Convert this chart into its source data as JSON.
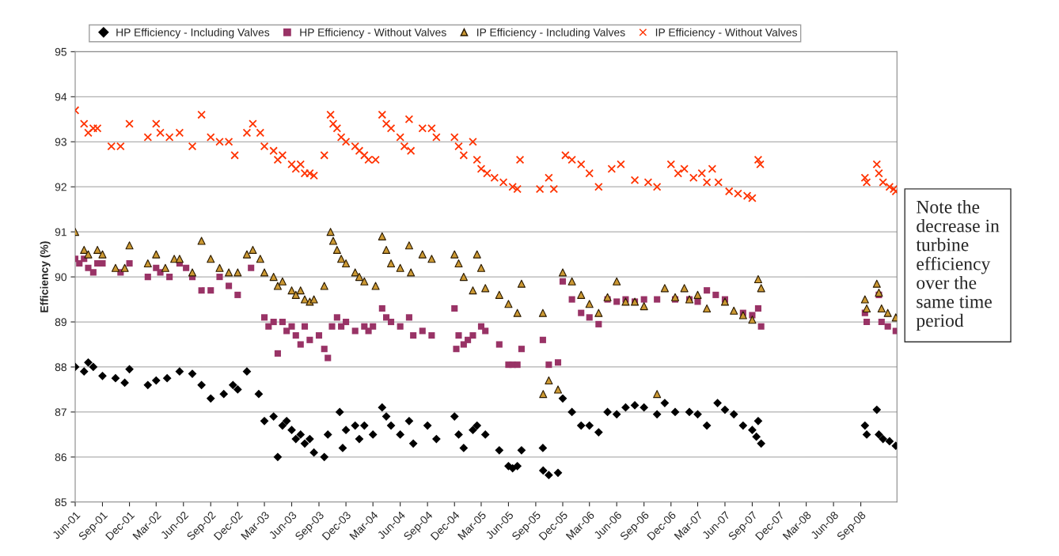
{
  "chart_data": {
    "type": "scatter",
    "ylabel": "Efficiency (%)",
    "annotations": [
      "Note the\ndecrease in\nturbine\nefficiency\nover the\nsame time\nperiod"
    ],
    "xlim": [
      "2001-06-01",
      "2009-01-01"
    ],
    "ylim": [
      85,
      95
    ],
    "yticks": [
      85,
      86,
      87,
      88,
      89,
      90,
      91,
      92,
      93,
      94,
      95
    ],
    "xticks": [
      {
        "value": "2001-06-01",
        "label": "Jun-01"
      },
      {
        "value": "2001-09-01",
        "label": "Sep-01"
      },
      {
        "value": "2001-12-01",
        "label": "Dec-01"
      },
      {
        "value": "2002-03-01",
        "label": "Mar-02"
      },
      {
        "value": "2002-06-01",
        "label": "Jun-02"
      },
      {
        "value": "2002-09-01",
        "label": "Sep-02"
      },
      {
        "value": "2002-12-01",
        "label": "Dec-02"
      },
      {
        "value": "2003-03-01",
        "label": "Mar-03"
      },
      {
        "value": "2003-06-01",
        "label": "Jun-03"
      },
      {
        "value": "2003-09-01",
        "label": "Sep-03"
      },
      {
        "value": "2003-12-01",
        "label": "Dec-03"
      },
      {
        "value": "2004-03-01",
        "label": "Mar-04"
      },
      {
        "value": "2004-06-01",
        "label": "Jun-04"
      },
      {
        "value": "2004-09-01",
        "label": "Sep-04"
      },
      {
        "value": "2004-12-01",
        "label": "Dec-04"
      },
      {
        "value": "2005-03-01",
        "label": "Mar-05"
      },
      {
        "value": "2005-06-01",
        "label": "Jun-05"
      },
      {
        "value": "2005-09-01",
        "label": "Sep-05"
      },
      {
        "value": "2005-12-01",
        "label": "Dec-05"
      },
      {
        "value": "2006-03-01",
        "label": "Mar-06"
      },
      {
        "value": "2006-06-01",
        "label": "Jun-06"
      },
      {
        "value": "2006-09-01",
        "label": "Sep-06"
      },
      {
        "value": "2006-12-01",
        "label": "Dec-06"
      },
      {
        "value": "2007-03-01",
        "label": "Mar-07"
      },
      {
        "value": "2007-06-01",
        "label": "Jun-07"
      },
      {
        "value": "2007-09-01",
        "label": "Sep-07"
      },
      {
        "value": "2007-12-01",
        "label": "Dec-07"
      },
      {
        "value": "2008-03-01",
        "label": "Mar-08"
      },
      {
        "value": "2008-06-01",
        "label": "Jun-08"
      },
      {
        "value": "2008-09-01",
        "label": "Sep-08"
      }
    ],
    "grid": "y",
    "legend": "top",
    "series": [
      {
        "name": "HP Efficiency - Including Valves",
        "color": "#000000",
        "marker": "diamond",
        "x": [
          "2001-06-01",
          "2001-07-01",
          "2001-07-15",
          "2001-08-01",
          "2001-09-01",
          "2001-10-15",
          "2001-11-15",
          "2001-12-01",
          "2002-02-01",
          "2002-03-01",
          "2002-04-07",
          "2002-05-19",
          "2002-07-01",
          "2002-08-01",
          "2002-09-01",
          "2002-10-15",
          "2002-11-15",
          "2002-12-01",
          "2003-01-01",
          "2003-02-10",
          "2003-03-01",
          "2003-04-01",
          "2003-04-15",
          "2003-05-01",
          "2003-05-15",
          "2003-06-01",
          "2003-06-15",
          "2003-07-01",
          "2003-07-15",
          "2003-08-01",
          "2003-08-15",
          "2003-09-19",
          "2003-10-01",
          "2003-11-10",
          "2003-11-20",
          "2003-12-01",
          "2004-01-01",
          "2004-01-15",
          "2004-02-01",
          "2004-03-01",
          "2004-04-01",
          "2004-04-15",
          "2004-05-01",
          "2004-06-01",
          "2004-07-01",
          "2004-07-15",
          "2004-09-01",
          "2004-10-01",
          "2004-12-01",
          "2004-12-15",
          "2005-01-01",
          "2005-02-01",
          "2005-02-15",
          "2005-03-15",
          "2005-05-01",
          "2005-06-01",
          "2005-06-15",
          "2005-07-01",
          "2005-07-15",
          "2005-09-25",
          "2005-09-26",
          "2005-10-15",
          "2005-11-15",
          "2005-12-01",
          "2006-01-01",
          "2006-02-01",
          "2006-03-01",
          "2006-04-01",
          "2006-05-01",
          "2006-06-01",
          "2006-07-01",
          "2006-08-01",
          "2006-09-01",
          "2006-10-15",
          "2006-11-10",
          "2006-12-15",
          "2007-02-01",
          "2007-03-01",
          "2007-04-01",
          "2007-05-07",
          "2007-06-01",
          "2007-07-01",
          "2007-08-01",
          "2007-09-01",
          "2007-09-15",
          "2007-09-21",
          "2007-10-01",
          "2008-09-15",
          "2008-09-21",
          "2008-10-25",
          "2008-11-01",
          "2008-11-15",
          "2008-12-07",
          "2008-12-28"
        ],
        "values": [
          88.0,
          87.9,
          88.1,
          88.0,
          87.8,
          87.75,
          87.65,
          87.95,
          87.6,
          87.7,
          87.75,
          87.9,
          87.85,
          87.6,
          87.3,
          87.4,
          87.6,
          87.5,
          87.9,
          87.4,
          86.8,
          86.9,
          86.0,
          86.7,
          86.8,
          86.6,
          86.4,
          86.5,
          86.3,
          86.4,
          86.1,
          86.0,
          86.5,
          87.0,
          86.2,
          86.6,
          86.7,
          86.4,
          86.7,
          86.5,
          87.1,
          86.9,
          86.7,
          86.5,
          86.8,
          86.3,
          86.7,
          86.4,
          86.9,
          86.5,
          86.2,
          86.6,
          86.7,
          86.5,
          86.15,
          85.8,
          85.75,
          85.8,
          86.15,
          86.2,
          85.7,
          85.6,
          85.65,
          87.3,
          87.0,
          86.7,
          86.7,
          86.55,
          87.0,
          86.95,
          87.1,
          87.15,
          87.1,
          86.95,
          87.2,
          87.0,
          87.0,
          86.95,
          86.7,
          87.2,
          87.05,
          86.95,
          86.7,
          86.6,
          86.45,
          86.8,
          86.3,
          86.7,
          86.5,
          87.05,
          86.5,
          86.4,
          86.35,
          86.25
        ]
      },
      {
        "name": "HP Efficiency - Without Valves",
        "color": "#993366",
        "marker": "square",
        "x": [
          "2001-06-01",
          "2001-06-15",
          "2001-07-01",
          "2001-07-15",
          "2001-08-01",
          "2001-08-15",
          "2001-09-01",
          "2001-11-01",
          "2001-12-01",
          "2002-02-01",
          "2002-03-01",
          "2002-03-15",
          "2002-04-15",
          "2002-05-19",
          "2002-06-10",
          "2002-07-01",
          "2002-08-01",
          "2002-09-01",
          "2002-10-01",
          "2002-11-01",
          "2002-12-01",
          "2003-01-15",
          "2003-03-01",
          "2003-03-15",
          "2003-04-01",
          "2003-04-15",
          "2003-05-01",
          "2003-05-15",
          "2003-06-01",
          "2003-06-15",
          "2003-07-01",
          "2003-07-15",
          "2003-08-01",
          "2003-09-01",
          "2003-09-19",
          "2003-10-01",
          "2003-10-15",
          "2003-11-01",
          "2003-11-15",
          "2003-12-01",
          "2004-01-01",
          "2004-02-01",
          "2004-02-15",
          "2004-03-01",
          "2004-04-01",
          "2004-04-15",
          "2004-05-01",
          "2004-06-01",
          "2004-07-01",
          "2004-07-15",
          "2004-08-15",
          "2004-09-15",
          "2004-12-01",
          "2004-12-07",
          "2004-12-15",
          "2005-01-01",
          "2005-01-15",
          "2005-02-01",
          "2005-03-01",
          "2005-03-15",
          "2005-05-01",
          "2005-06-01",
          "2005-06-15",
          "2005-07-01",
          "2005-07-15",
          "2005-09-25",
          "2005-10-15",
          "2005-11-15",
          "2005-12-01",
          "2006-01-01",
          "2006-02-01",
          "2006-03-01",
          "2006-04-01",
          "2006-05-01",
          "2006-06-01",
          "2006-07-01",
          "2006-08-01",
          "2006-09-01",
          "2006-10-15",
          "2006-12-15",
          "2007-02-01",
          "2007-03-01",
          "2007-04-01",
          "2007-05-01",
          "2007-06-01",
          "2007-08-01",
          "2007-09-01",
          "2007-09-21",
          "2007-10-01",
          "2008-09-15",
          "2008-09-21",
          "2008-11-01",
          "2008-11-10",
          "2008-12-01",
          "2008-12-28"
        ],
        "values": [
          90.4,
          90.3,
          90.4,
          90.2,
          90.1,
          90.3,
          90.3,
          90.1,
          90.3,
          90.0,
          90.2,
          90.1,
          90.0,
          90.3,
          90.2,
          90.0,
          89.7,
          89.7,
          90.0,
          89.8,
          89.6,
          90.2,
          89.1,
          88.9,
          89.0,
          88.3,
          89.0,
          88.8,
          88.9,
          88.7,
          88.5,
          88.9,
          88.6,
          88.7,
          88.4,
          88.2,
          88.9,
          89.1,
          88.9,
          89.0,
          88.8,
          88.9,
          88.8,
          88.9,
          89.3,
          89.1,
          89.0,
          88.9,
          89.1,
          88.7,
          88.8,
          88.7,
          89.3,
          88.4,
          88.7,
          88.5,
          88.6,
          88.7,
          88.9,
          88.8,
          88.5,
          88.05,
          88.05,
          88.05,
          88.4,
          88.6,
          88.05,
          88.1,
          89.9,
          89.5,
          89.2,
          89.1,
          88.95,
          89.5,
          89.45,
          89.5,
          89.45,
          89.5,
          89.5,
          89.5,
          89.5,
          89.45,
          89.7,
          89.6,
          89.5,
          89.2,
          89.15,
          89.3,
          88.9,
          89.2,
          89.0,
          89.6,
          89.0,
          88.9,
          88.8
        ]
      },
      {
        "name": "IP Efficiency - Including Valves",
        "color": "#cc9933",
        "marker": "triangle",
        "x": [
          "2001-06-01",
          "2001-07-01",
          "2001-07-15",
          "2001-08-15",
          "2001-09-01",
          "2001-10-15",
          "2001-11-15",
          "2001-12-01",
          "2002-02-01",
          "2002-03-01",
          "2002-04-01",
          "2002-05-01",
          "2002-05-19",
          "2002-07-01",
          "2002-08-01",
          "2002-09-01",
          "2002-10-01",
          "2002-11-01",
          "2002-12-01",
          "2003-01-01",
          "2003-01-21",
          "2003-02-15",
          "2003-03-01",
          "2003-04-01",
          "2003-04-15",
          "2003-05-01",
          "2003-06-01",
          "2003-06-15",
          "2003-07-01",
          "2003-07-15",
          "2003-08-01",
          "2003-08-15",
          "2003-09-19",
          "2003-10-10",
          "2003-10-19",
          "2003-11-01",
          "2003-11-15",
          "2003-12-01",
          "2004-01-01",
          "2004-01-15",
          "2004-02-01",
          "2004-03-10",
          "2004-04-01",
          "2004-04-15",
          "2004-05-01",
          "2004-06-01",
          "2004-07-01",
          "2004-07-07",
          "2004-08-15",
          "2004-09-15",
          "2004-12-01",
          "2004-12-15",
          "2005-01-01",
          "2005-02-01",
          "2005-02-15",
          "2005-03-01",
          "2005-03-15",
          "2005-05-01",
          "2005-06-01",
          "2005-07-01",
          "2005-07-15",
          "2005-09-25",
          "2005-09-26",
          "2005-10-15",
          "2005-11-15",
          "2005-12-01",
          "2006-01-01",
          "2006-02-01",
          "2006-03-01",
          "2006-04-01",
          "2006-05-01",
          "2006-06-01",
          "2006-07-01",
          "2006-08-01",
          "2006-09-01",
          "2006-10-15",
          "2006-11-10",
          "2006-12-15",
          "2007-01-15",
          "2007-02-01",
          "2007-03-01",
          "2007-04-01",
          "2007-06-01",
          "2007-07-01",
          "2007-08-01",
          "2007-09-01",
          "2007-09-21",
          "2007-10-01",
          "2008-09-15",
          "2008-09-21",
          "2008-10-25",
          "2008-11-01",
          "2008-11-10",
          "2008-12-01",
          "2008-12-28"
        ],
        "values": [
          91.0,
          90.6,
          90.5,
          90.6,
          90.5,
          90.2,
          90.2,
          90.7,
          90.3,
          90.5,
          90.2,
          90.4,
          90.4,
          90.1,
          90.8,
          90.4,
          90.2,
          90.1,
          90.1,
          90.5,
          90.6,
          90.4,
          90.1,
          90.0,
          89.8,
          89.9,
          89.7,
          89.6,
          89.7,
          89.5,
          89.45,
          89.5,
          89.8,
          91.0,
          90.8,
          90.6,
          90.4,
          90.3,
          90.1,
          90.0,
          89.9,
          89.8,
          90.9,
          90.6,
          90.3,
          90.2,
          90.7,
          90.1,
          90.5,
          90.4,
          90.5,
          90.3,
          90.0,
          89.7,
          90.5,
          90.2,
          89.75,
          89.6,
          89.4,
          89.2,
          89.85,
          89.2,
          87.4,
          87.7,
          87.5,
          90.1,
          89.9,
          89.6,
          89.4,
          89.2,
          89.55,
          89.9,
          89.45,
          89.45,
          89.35,
          87.4,
          89.75,
          89.55,
          89.75,
          89.5,
          89.6,
          89.3,
          89.45,
          89.25,
          89.15,
          89.05,
          89.95,
          89.75,
          89.5,
          89.3,
          89.85,
          89.65,
          89.3,
          89.2,
          89.1
        ]
      },
      {
        "name": "IP Efficiency - Without Valves",
        "color": "#ff3300",
        "marker": "cross",
        "x": [
          "2001-06-01",
          "2001-07-01",
          "2001-07-15",
          "2001-08-01",
          "2001-08-15",
          "2001-10-01",
          "2001-11-01",
          "2001-12-01",
          "2002-02-01",
          "2002-03-01",
          "2002-03-15",
          "2002-04-15",
          "2002-05-19",
          "2002-07-01",
          "2002-08-01",
          "2002-09-01",
          "2002-10-01",
          "2002-11-01",
          "2002-11-21",
          "2003-01-01",
          "2003-01-21",
          "2003-02-15",
          "2003-03-01",
          "2003-04-01",
          "2003-04-15",
          "2003-05-01",
          "2003-06-01",
          "2003-06-15",
          "2003-07-01",
          "2003-07-15",
          "2003-08-01",
          "2003-08-15",
          "2003-09-19",
          "2003-10-10",
          "2003-10-19",
          "2003-11-01",
          "2003-11-15",
          "2003-12-01",
          "2004-01-01",
          "2004-01-15",
          "2004-02-01",
          "2004-02-15",
          "2004-03-10",
          "2004-04-01",
          "2004-04-15",
          "2004-05-01",
          "2004-06-01",
          "2004-06-15",
          "2004-07-01",
          "2004-07-07",
          "2004-08-15",
          "2004-09-15",
          "2004-10-01",
          "2004-12-01",
          "2004-12-15",
          "2005-01-01",
          "2005-02-01",
          "2005-02-15",
          "2005-03-01",
          "2005-03-21",
          "2005-04-15",
          "2005-05-15",
          "2005-06-15",
          "2005-07-01",
          "2005-07-10",
          "2005-09-15",
          "2005-10-15",
          "2005-11-01",
          "2005-12-10",
          "2006-01-01",
          "2006-02-01",
          "2006-03-01",
          "2006-04-01",
          "2006-05-15",
          "2006-06-15",
          "2006-08-01",
          "2006-09-15",
          "2006-10-15",
          "2006-12-01",
          "2006-12-25",
          "2007-01-15",
          "2007-02-15",
          "2007-03-15",
          "2007-04-01",
          "2007-04-19",
          "2007-05-10",
          "2007-06-15",
          "2007-07-15",
          "2007-08-15",
          "2007-09-01",
          "2007-09-21",
          "2007-09-28",
          "2008-09-15",
          "2008-09-21",
          "2008-10-25",
          "2008-11-01",
          "2008-11-15",
          "2008-12-07",
          "2008-12-21",
          "2008-12-28"
        ],
        "values": [
          93.7,
          93.4,
          93.2,
          93.3,
          93.3,
          92.9,
          92.9,
          93.4,
          93.1,
          93.4,
          93.2,
          93.1,
          93.2,
          92.9,
          93.6,
          93.1,
          93.0,
          93.0,
          92.7,
          93.2,
          93.4,
          93.2,
          92.9,
          92.8,
          92.6,
          92.7,
          92.5,
          92.4,
          92.5,
          92.3,
          92.3,
          92.25,
          92.7,
          93.6,
          93.4,
          93.3,
          93.1,
          93.0,
          92.9,
          92.8,
          92.7,
          92.6,
          92.6,
          93.6,
          93.4,
          93.3,
          93.1,
          92.9,
          93.5,
          92.8,
          93.3,
          93.3,
          93.1,
          93.1,
          92.9,
          92.7,
          93.0,
          92.6,
          92.4,
          92.3,
          92.2,
          92.1,
          92.0,
          91.95,
          92.6,
          91.95,
          92.2,
          91.95,
          92.7,
          92.6,
          92.5,
          92.3,
          92.0,
          92.4,
          92.5,
          92.15,
          92.1,
          92.0,
          92.5,
          92.3,
          92.4,
          92.2,
          92.3,
          92.1,
          92.4,
          92.1,
          91.9,
          91.85,
          91.8,
          91.75,
          92.6,
          92.5,
          92.2,
          92.1,
          92.5,
          92.3,
          92.1,
          92.0,
          91.95,
          91.9
        ]
      }
    ]
  }
}
